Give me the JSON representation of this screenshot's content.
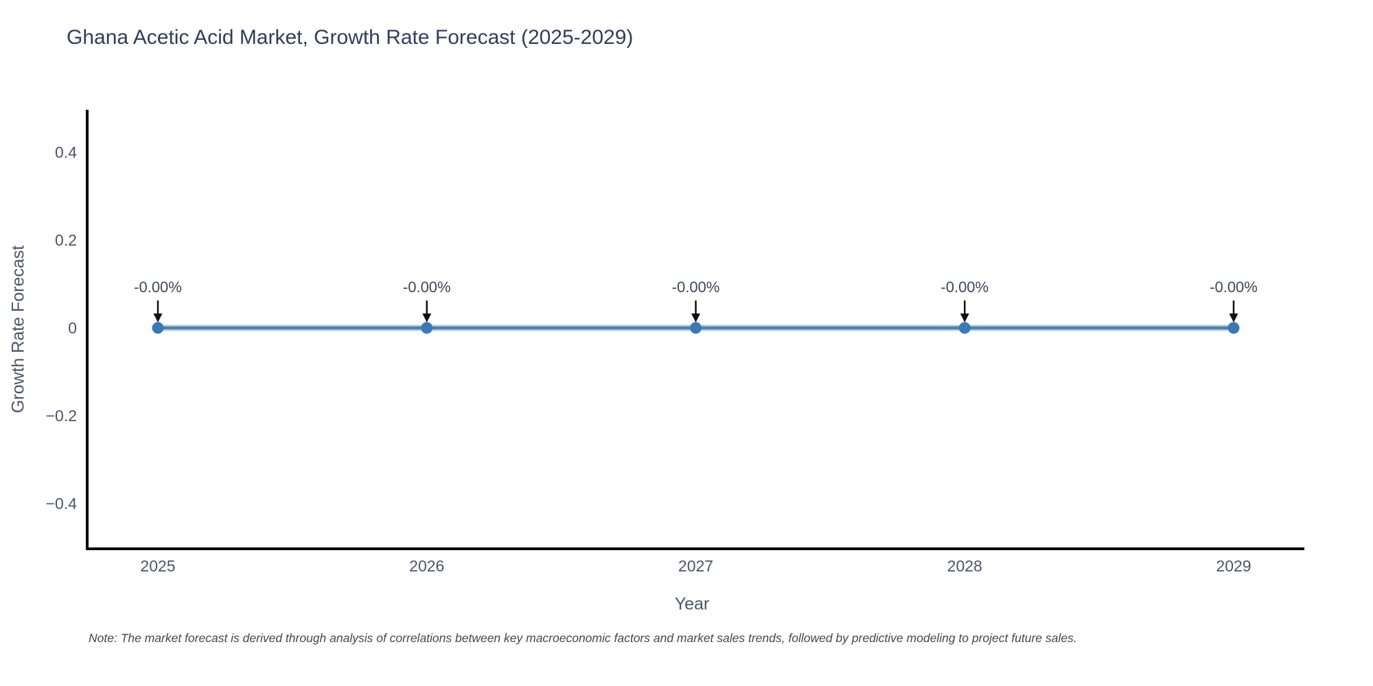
{
  "note": "Note: The market forecast is derived through analysis of correlations between key macroeconomic factors and market sales trends, followed by predictive modeling to project future sales.",
  "chart_data": {
    "type": "line",
    "title": "Ghana Acetic Acid Market, Growth Rate Forecast (2025-2029)",
    "xlabel": "Year",
    "ylabel": "Growth Rate Forecast",
    "x": [
      "2025",
      "2026",
      "2027",
      "2028",
      "2029"
    ],
    "values": [
      0,
      0,
      0,
      0,
      0
    ],
    "point_labels": [
      "-0.00%",
      "-0.00%",
      "-0.00%",
      "-0.00%",
      "-0.00%"
    ],
    "ylim": [
      -0.5,
      0.5
    ],
    "yticks": [
      0.4,
      0.2,
      0,
      -0.2,
      -0.4
    ],
    "ytick_labels": [
      "0.4",
      "0.2",
      "0",
      "−0.2",
      "−0.4"
    ],
    "grid": false,
    "legend": "none",
    "colors": {
      "line": "#4e82ad",
      "line_halo": "#b9cfe2",
      "marker": "#3a79b5",
      "axis": "#000000",
      "tick_text": "#4a5568",
      "annotation_text": "#3e4757",
      "arrow": "#111111",
      "title_text": "#2e3e5c"
    }
  }
}
